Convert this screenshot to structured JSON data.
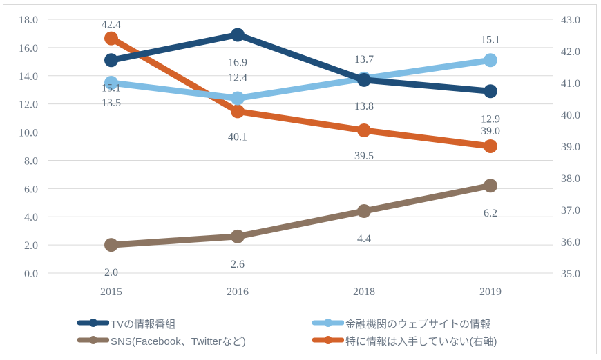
{
  "chart_data": {
    "type": "line",
    "categories": [
      "2015",
      "2016",
      "2018",
      "2019"
    ],
    "y_left": {
      "range": [
        0,
        18
      ],
      "ticks": [
        "0.0",
        "2.0",
        "4.0",
        "6.0",
        "8.0",
        "10.0",
        "12.0",
        "14.0",
        "16.0",
        "18.0"
      ]
    },
    "y_right": {
      "range": [
        35,
        43
      ],
      "ticks": [
        "35.0",
        "36.0",
        "37.0",
        "38.0",
        "39.0",
        "40.0",
        "41.0",
        "42.0",
        "43.0"
      ]
    },
    "grid": true,
    "legend_position": "bottom",
    "series": [
      {
        "name": "TVの情報番組",
        "axis": "left",
        "color": "#1f4e79",
        "values": [
          15.1,
          16.9,
          13.7,
          12.9
        ],
        "labels": [
          "15.1",
          "16.9",
          "13.7",
          "12.9"
        ]
      },
      {
        "name": "金融機関のウェブサイトの情報",
        "axis": "left",
        "color": "#7fbde4",
        "values": [
          13.5,
          12.4,
          13.8,
          15.1
        ],
        "labels": [
          "13.5",
          "12.4",
          "13.8",
          "15.1"
        ]
      },
      {
        "name": "SNS(Facebook、Twitterなど)",
        "axis": "left",
        "color": "#8c7562",
        "values": [
          2.0,
          2.6,
          4.4,
          6.2
        ],
        "labels": [
          "2.0",
          "2.6",
          "4.4",
          "6.2"
        ]
      },
      {
        "name": "特に情報は入手していない(右軸)",
        "axis": "right",
        "color": "#d4622a",
        "values": [
          42.4,
          40.1,
          39.5,
          39.0
        ],
        "labels": [
          "42.4",
          "40.1",
          "39.5",
          "39.0"
        ]
      }
    ]
  }
}
